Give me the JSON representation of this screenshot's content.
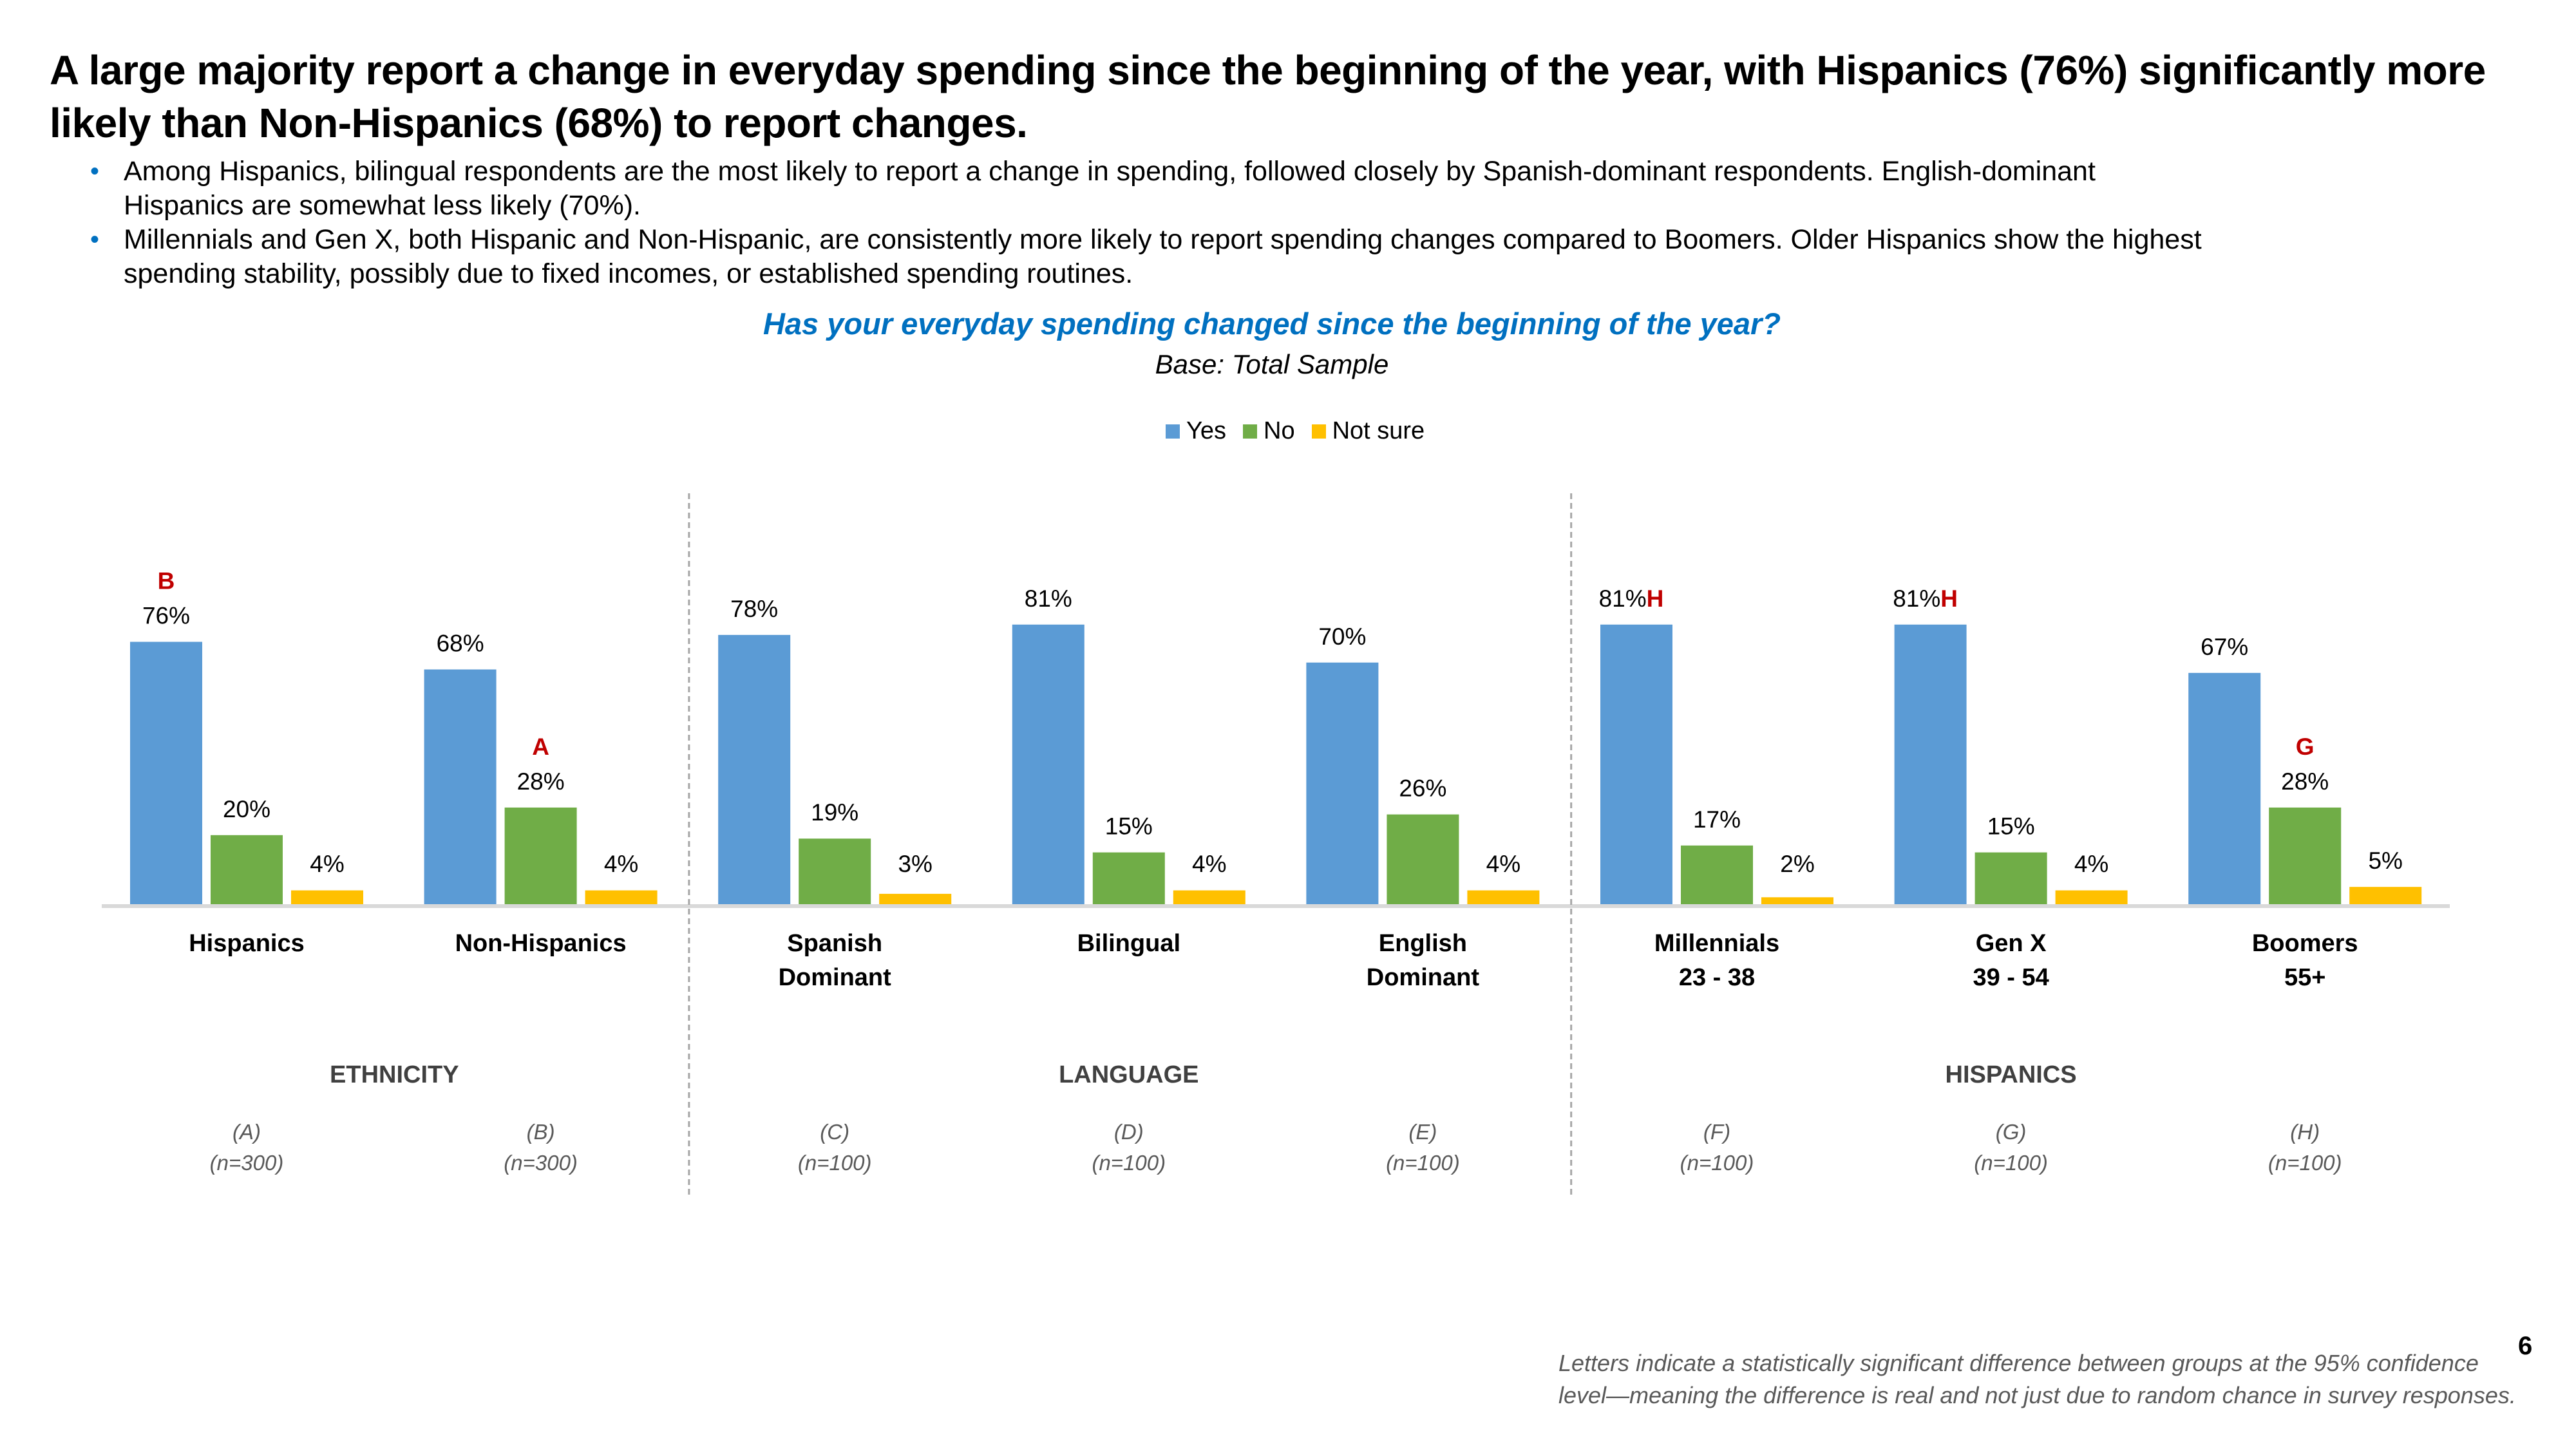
{
  "title": "A large majority report a change in everyday spending since the beginning of the year, with Hispanics (76%) significantly more likely than Non-Hispanics (68%) to report changes.",
  "bullets": [
    "Among Hispanics, bilingual respondents are the most likely to report a change in spending, followed closely by Spanish-dominant respondents. English-dominant Hispanics are somewhat less likely (70%).",
    "Millennials and Gen X, both Hispanic and Non-Hispanic, are consistently more likely to report spending changes  compared to Boomers. Older Hispanics show the highest spending stability, possibly due to fixed incomes, or established spending routines."
  ],
  "bullet_icon": "bullet-dot-icon",
  "colors": {
    "yes": "#5B9BD5",
    "no": "#70AD47",
    "not_sure": "#FFC000",
    "significance": "#C00000",
    "question": "#0070C0",
    "axis": "#D9D9D9",
    "divider": "#A6A6A6"
  },
  "chart_data": {
    "type": "bar",
    "title": "Has your everyday spending changed since the beginning of the year?",
    "subtitle": "Base: Total Sample",
    "xlabel": "",
    "ylabel": "",
    "ylim": [
      0,
      100
    ],
    "grid": false,
    "legend_position": "top-center",
    "legend": [
      "Yes",
      "No",
      "Not sure"
    ],
    "categories": [
      {
        "label": [
          "Hispanics"
        ],
        "section": "ETHNICITY",
        "letter": "(A)",
        "n": "(n=300)"
      },
      {
        "label": [
          "Non-Hispanics"
        ],
        "section": "ETHNICITY",
        "letter": "(B)",
        "n": "(n=300)"
      },
      {
        "label": [
          "Spanish",
          "Dominant"
        ],
        "section": "LANGUAGE",
        "letter": "(C)",
        "n": "(n=100)"
      },
      {
        "label": [
          "Bilingual"
        ],
        "section": "LANGUAGE",
        "letter": "(D)",
        "n": "(n=100)"
      },
      {
        "label": [
          "English",
          "Dominant"
        ],
        "section": "LANGUAGE",
        "letter": "(E)",
        "n": "(n=100)"
      },
      {
        "label": [
          "Millennials",
          "23 - 38"
        ],
        "section": "HISPANICS",
        "letter": "(F)",
        "n": "(n=100)"
      },
      {
        "label": [
          "Gen X",
          "39 - 54"
        ],
        "section": "HISPANICS",
        "letter": "(G)",
        "n": "(n=100)"
      },
      {
        "label": [
          "Boomers",
          "55+"
        ],
        "section": "HISPANICS",
        "letter": "(H)",
        "n": "(n=100)"
      }
    ],
    "sections": [
      {
        "name": "ETHNICITY",
        "from": 0,
        "to": 1
      },
      {
        "name": "LANGUAGE",
        "from": 2,
        "to": 4
      },
      {
        "name": "HISPANICS",
        "from": 5,
        "to": 7
      }
    ],
    "series": [
      {
        "name": "Yes",
        "key": "yes",
        "values": [
          76,
          68,
          78,
          81,
          70,
          81,
          81,
          67
        ],
        "significance": [
          "B",
          "",
          "",
          "",
          "",
          "H",
          "H",
          ""
        ]
      },
      {
        "name": "No",
        "key": "no",
        "values": [
          20,
          28,
          19,
          15,
          26,
          17,
          15,
          28
        ],
        "significance": [
          "",
          "A",
          "",
          "",
          "",
          "",
          "",
          "G"
        ]
      },
      {
        "name": "Not sure",
        "key": "not_sure",
        "values": [
          4,
          4,
          3,
          4,
          4,
          2,
          4,
          5
        ],
        "significance": [
          "",
          "",
          "",
          "",
          "",
          "",
          "",
          ""
        ]
      }
    ],
    "value_suffix": "%"
  },
  "footnote": "Letters indicate a statistically significant difference between groups at the 95% confidence level—meaning the difference is real and not just due to random chance in survey responses.",
  "page_number": "6"
}
